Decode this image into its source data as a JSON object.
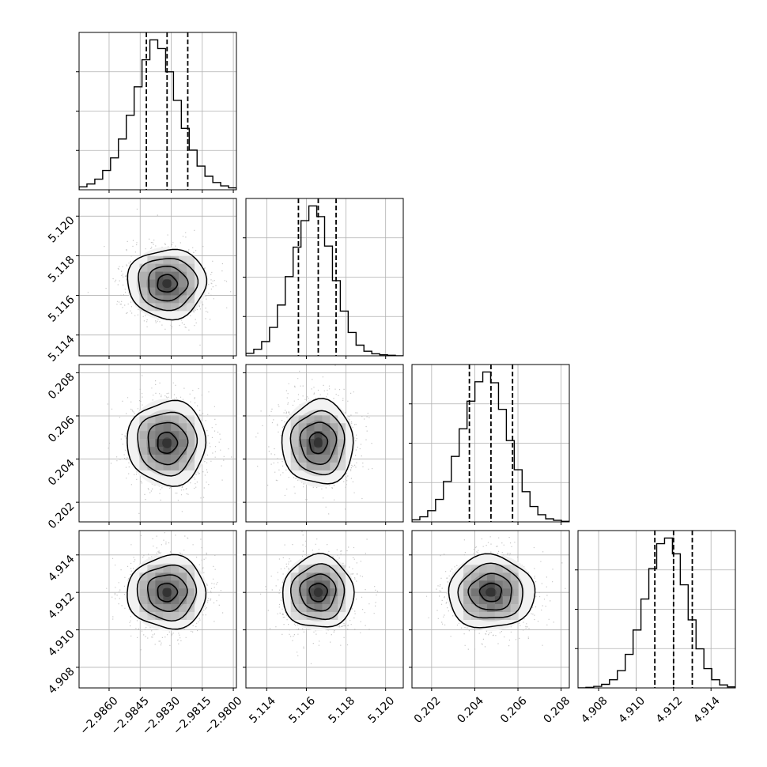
{
  "chart_data": {
    "type": "corner",
    "parameters": [
      {
        "index": 0,
        "range": [
          -2.98745,
          -2.97985
        ],
        "median": -2.9832,
        "q16": -2.9842,
        "q84": -2.9822,
        "sigma": 0.00095,
        "ticks": [
          "−2.9860",
          "−2.9845",
          "−2.9830",
          "−2.9815",
          "−2.9800"
        ],
        "tick_values": [
          -2.986,
          -2.9845,
          -2.983,
          -2.9815,
          -2.98
        ],
        "hist_counts": [
          0.6,
          1.2,
          2.2,
          4.0,
          6.6,
          10.5,
          15.4,
          21.3,
          26.9,
          31.0,
          29.2,
          24.4,
          18.5,
          12.7,
          8.2,
          4.9,
          2.8,
          1.5,
          0.8,
          0.4
        ]
      },
      {
        "index": 1,
        "range": [
          5.11295,
          5.12089
        ],
        "median": 5.1166,
        "q16": 5.1156,
        "q84": 5.1175,
        "sigma": 0.0009,
        "ticks": [
          "5.114",
          "5.116",
          "5.118",
          "5.120"
        ],
        "tick_values": [
          5.114,
          5.116,
          5.118,
          5.12
        ],
        "hist_counts": [
          0.5,
          1.3,
          2.8,
          5.6,
          10.0,
          15.6,
          21.4,
          26.6,
          29.5,
          27.4,
          21.6,
          14.8,
          8.8,
          4.6,
          2.1,
          0.9,
          0.4,
          0.2,
          0.1,
          0.0
        ]
      },
      {
        "index": 2,
        "range": [
          0.20109,
          0.20838
        ],
        "median": 0.20475,
        "q16": 0.20375,
        "q84": 0.20575,
        "sigma": 0.001,
        "ticks": [
          "0.202",
          "0.204",
          "0.206",
          "0.208"
        ],
        "tick_values": [
          0.202,
          0.204,
          0.206,
          0.208
        ],
        "hist_counts": [
          0.4,
          1.0,
          2.2,
          4.4,
          7.9,
          12.8,
          18.2,
          23.6,
          27.4,
          29.3,
          27.2,
          22.0,
          15.9,
          10.2,
          5.9,
          3.0,
          1.4,
          0.6,
          0.3,
          0.1
        ]
      },
      {
        "index": 3,
        "range": [
          4.9069,
          4.9153
        ],
        "median": 4.912,
        "q16": 4.911,
        "q84": 4.913,
        "sigma": 0.001,
        "ticks": [
          "4.908",
          "4.910",
          "4.912",
          "4.914"
        ],
        "tick_values": [
          4.908,
          4.91,
          4.912,
          4.914
        ],
        "hist_counts": [
          0.0,
          0.1,
          0.3,
          0.7,
          1.6,
          3.4,
          6.6,
          11.4,
          17.5,
          23.5,
          28.4,
          29.5,
          26.4,
          20.3,
          13.4,
          7.7,
          3.8,
          1.6,
          0.6,
          0.2
        ]
      }
    ],
    "hist_bins": 20,
    "quantiles": [
      0.16,
      0.5,
      0.84
    ],
    "contour_levels_sigma": [
      0.5,
      1.0,
      1.5,
      2.0
    ],
    "grid": true,
    "colors": {
      "line": "#000000",
      "grid": "#b0b0b0",
      "scatter": "#b3b3b3",
      "frame": "#000000",
      "background": "#ffffff"
    }
  }
}
